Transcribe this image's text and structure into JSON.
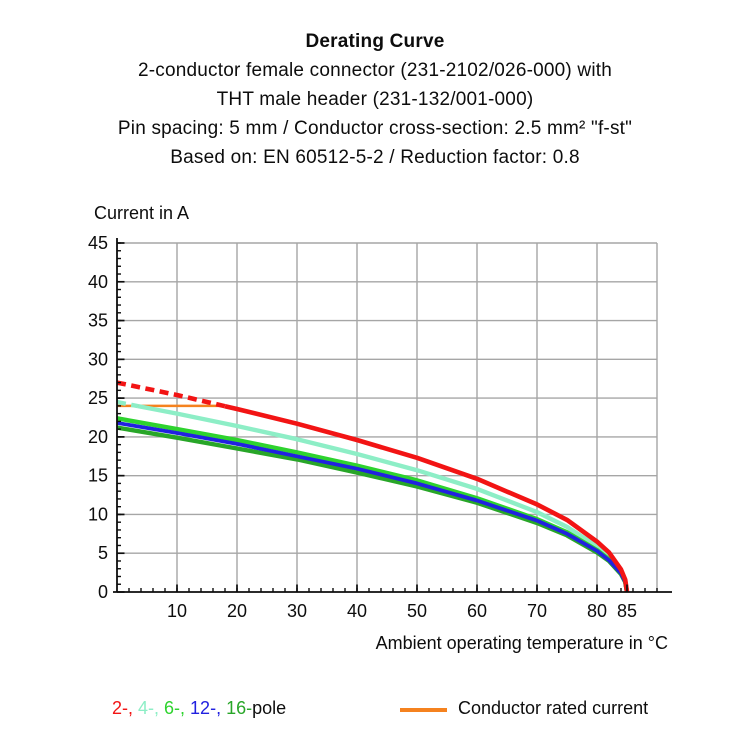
{
  "header": {
    "title": "Derating Curve",
    "line2": "2-conductor female connector (231-2102/026-000) with",
    "line3": "THT male header (231-132/001-000)",
    "line4": "Pin spacing: 5 mm / Conductor cross-section: 2.5 mm² \"f-st\"",
    "line5": "Based on: EN 60512-5-2 / Reduction factor: 0.8"
  },
  "axes": {
    "ylabel": "Current in A",
    "xlabel": "Ambient operating temperature in °C"
  },
  "legend": {
    "pole_items": [
      {
        "text": "2-,",
        "color": "#f21414"
      },
      {
        "text": "4-,",
        "color": "#8deec6"
      },
      {
        "text": "6-,",
        "color": "#2ed32e"
      },
      {
        "text": "12-,",
        "color": "#2121e0"
      },
      {
        "text": "16-",
        "color": "#28a628"
      }
    ],
    "pole_suffix": "pole",
    "rated_label": "Conductor rated current",
    "rated_color": "#f5821f"
  },
  "chart_data": {
    "type": "line",
    "title": "Derating Curve",
    "xlabel": "Ambient operating temperature in °C",
    "ylabel": "Current in A",
    "xlim": [
      0,
      92
    ],
    "ylim": [
      0,
      45
    ],
    "x_major_ticks": [
      10,
      20,
      30,
      40,
      50,
      60,
      70,
      80,
      85
    ],
    "x_minor_step": 2,
    "y_major_ticks": [
      0,
      5,
      10,
      15,
      20,
      25,
      30,
      35,
      40,
      45
    ],
    "y_minor_step": 1,
    "grid": true,
    "x": [
      0,
      10,
      20,
      30,
      40,
      50,
      60,
      70,
      75,
      80,
      82,
      84,
      84.7,
      85
    ],
    "series": [
      {
        "name": "4-pole",
        "color": "#8deec6",
        "width": 4.4,
        "dash_until_x": 3.5,
        "values": [
          24.5,
          23.0,
          21.4,
          19.7,
          17.8,
          15.7,
          13.3,
          10.3,
          8.4,
          5.9,
          4.6,
          2.7,
          1.5,
          0
        ]
      },
      {
        "name": "6-pole",
        "color": "#2ed32e",
        "width": 4.4,
        "values": [
          22.4,
          21.0,
          19.6,
          18.0,
          16.3,
          14.4,
          12.1,
          9.4,
          7.7,
          5.4,
          4.2,
          2.4,
          1.3,
          0
        ]
      },
      {
        "name": "16-pole",
        "color": "#28a628",
        "width": 4.4,
        "values": [
          21.2,
          19.9,
          18.5,
          17.1,
          15.4,
          13.6,
          11.5,
          8.9,
          7.3,
          5.1,
          4.0,
          2.3,
          1.3,
          0
        ]
      },
      {
        "name": "12-pole",
        "color": "#2121e0",
        "width": 3.8,
        "values": [
          21.8,
          20.5,
          19.1,
          17.5,
          15.9,
          14.0,
          11.8,
          9.2,
          7.5,
          5.3,
          4.1,
          2.4,
          1.3,
          0
        ]
      },
      {
        "name": "2-pole",
        "color": "#f21414",
        "width": 4.6,
        "dash_until_x": 18,
        "values": [
          27.0,
          25.4,
          23.6,
          21.7,
          19.6,
          17.3,
          14.6,
          11.3,
          9.3,
          6.5,
          5.1,
          2.9,
          1.6,
          0
        ]
      }
    ],
    "rated_current": {
      "label": "Conductor rated current",
      "y": 24,
      "x_start": 0,
      "x_end": 17.8,
      "color": "#f5821f"
    },
    "legend_position": "bottom"
  }
}
